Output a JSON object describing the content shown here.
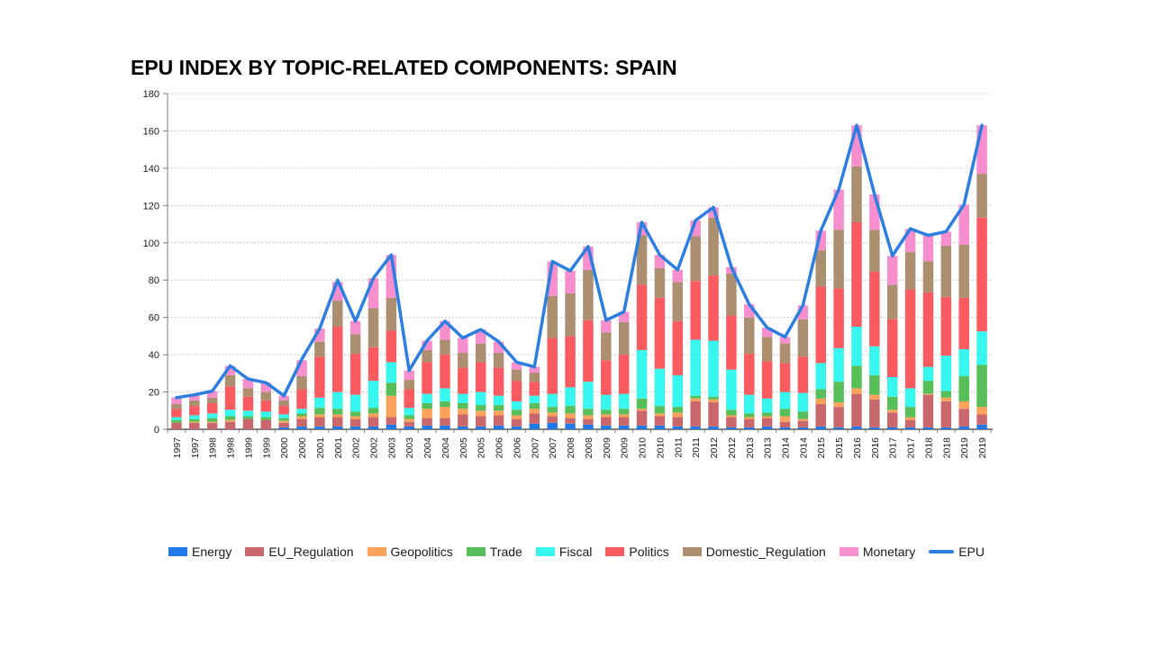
{
  "chart": {
    "title": "EPU INDEX BY TOPIC-RELATED COMPONENTS: SPAIN"
  },
  "chart_data": {
    "type": "bar",
    "stacked": true,
    "title": "EPU INDEX BY TOPIC-RELATED COMPONENTS: SPAIN",
    "xlabel": "",
    "ylabel": "",
    "ylim": [
      0,
      180
    ],
    "ytick_step": 20,
    "yticks": [
      0,
      20,
      40,
      60,
      80,
      100,
      120,
      140,
      160,
      180
    ],
    "grid": true,
    "legend_position": "bottom",
    "categories": [
      "1997",
      "1997",
      "1998",
      "1998",
      "1999",
      "1999",
      "2000",
      "2000",
      "2001",
      "2001",
      "2002",
      "2002",
      "2003",
      "2003",
      "2004",
      "2004",
      "2005",
      "2005",
      "2006",
      "2006",
      "2007",
      "2007",
      "2008",
      "2008",
      "2009",
      "2009",
      "2010",
      "2010",
      "2011",
      "2011",
      "2012",
      "2012",
      "2013",
      "2013",
      "2014",
      "2014",
      "2015",
      "2015",
      "2016",
      "2016",
      "2017",
      "2017",
      "2018",
      "2018",
      "2019",
      "2019"
    ],
    "series": [
      {
        "name": "Energy",
        "color": "#2079E8",
        "values": [
          0,
          0,
          0,
          0,
          0,
          0,
          1,
          1.5,
          1.5,
          1.5,
          1.5,
          1.5,
          2.5,
          1.5,
          2,
          2,
          1.5,
          1.5,
          2,
          1.5,
          3,
          3.5,
          3,
          2.5,
          2,
          2,
          2,
          2,
          1.5,
          1.5,
          1.5,
          1,
          1,
          1.5,
          1,
          1,
          1.5,
          1,
          1.5,
          1,
          1,
          1,
          1,
          1,
          1.5,
          2.5
        ]
      },
      {
        "name": "EU_Regulation",
        "color": "#C9676C",
        "values": [
          3.5,
          3.5,
          3.5,
          4,
          5.5,
          5,
          2.5,
          4,
          5,
          5,
          4,
          5,
          4,
          2.5,
          4,
          4,
          6.5,
          5.5,
          5.5,
          4,
          5.5,
          3.5,
          3,
          3,
          4.5,
          4.5,
          8,
          5,
          5,
          13.5,
          13,
          5.5,
          4.5,
          4.5,
          3,
          3.5,
          12,
          11,
          17.5,
          15,
          8,
          4,
          17.5,
          14,
          9.5,
          5.5
        ]
      },
      {
        "name": "Geopolitics",
        "color": "#FBA25C",
        "values": [
          0,
          0.5,
          0.5,
          1,
          0,
          0,
          1,
          1.5,
          1.5,
          1.5,
          1.5,
          2,
          11.5,
          1.5,
          5,
          6,
          3,
          3,
          2.5,
          2,
          2.5,
          2,
          2.5,
          2,
          1.5,
          1.5,
          1,
          1.5,
          2.5,
          1.5,
          1.5,
          1,
          1,
          1,
          3,
          1,
          3,
          2.5,
          3,
          2.5,
          1.5,
          1.5,
          0.5,
          2,
          4,
          4
        ]
      },
      {
        "name": "Trade",
        "color": "#57BE59",
        "values": [
          1.5,
          1.5,
          2,
          2,
          1.5,
          1.5,
          1.5,
          1.5,
          3.5,
          3,
          2.5,
          3,
          7,
          2,
          3,
          3,
          3,
          3,
          3,
          3,
          3,
          3,
          4,
          3.5,
          2.5,
          3,
          5.5,
          4,
          3,
          1.5,
          1.5,
          3,
          2,
          2,
          4,
          4,
          5,
          11,
          12,
          10.5,
          7,
          5.5,
          7,
          3.5,
          13.5,
          22.5
        ]
      },
      {
        "name": "Fiscal",
        "color": "#36F6EE",
        "values": [
          1.5,
          2,
          2.5,
          3.5,
          3,
          3,
          2,
          2.5,
          5.5,
          9,
          9,
          14.5,
          11,
          4,
          5,
          7,
          5,
          7,
          5,
          4.5,
          4,
          7,
          10,
          14.5,
          8,
          8,
          26,
          20,
          17,
          30,
          30,
          21.5,
          10,
          7.5,
          9,
          10,
          14,
          18,
          21,
          15.5,
          10.5,
          10,
          7.5,
          19,
          14.5,
          18
        ]
      },
      {
        "name": "Politics",
        "color": "#F95B60",
        "values": [
          4.5,
          5,
          5.5,
          12.5,
          7.5,
          6,
          4.5,
          10.5,
          22,
          35,
          22,
          18,
          17,
          10,
          17,
          18,
          14,
          16,
          15,
          11,
          7.5,
          30,
          27.5,
          33,
          18.5,
          21,
          35,
          38,
          29,
          31.5,
          35,
          29,
          22,
          20,
          15.5,
          19.5,
          41,
          32,
          56,
          40,
          31,
          53,
          40,
          31.5,
          27.5,
          61
        ]
      },
      {
        "name": "Domestic_Regulation",
        "color": "#AC8E70",
        "values": [
          2.5,
          3,
          3,
          6,
          4.5,
          4.5,
          3,
          7,
          8,
          14,
          10.5,
          21,
          17.5,
          5,
          6.5,
          8,
          8,
          10,
          8,
          6,
          5,
          22.5,
          23,
          27,
          15,
          17.5,
          26.5,
          16,
          21,
          24,
          31,
          22.5,
          19.5,
          13,
          10.5,
          20,
          19.5,
          31.5,
          30,
          22.5,
          18.5,
          20,
          16.5,
          27.5,
          28.5,
          23.5
        ]
      },
      {
        "name": "Monetary",
        "color": "#F78FCE",
        "values": [
          3.5,
          3,
          3.5,
          5,
          5,
          5,
          2.5,
          8.5,
          7,
          10,
          7,
          16,
          23,
          5,
          5,
          10,
          8,
          7.5,
          6,
          4,
          3,
          18.5,
          12,
          12.5,
          6.5,
          5.5,
          7,
          7,
          6.5,
          8.5,
          5.5,
          3.5,
          7,
          5,
          3.5,
          7.5,
          10.5,
          21.5,
          22,
          19,
          15.5,
          12.5,
          14,
          7.5,
          21.5,
          26
        ]
      }
    ],
    "line_series": {
      "name": "EPU",
      "color": "#2C7FE0",
      "values": [
        17,
        18.5,
        20.5,
        34,
        27,
        25,
        18,
        37.5,
        54,
        80,
        58,
        81,
        93.5,
        31.5,
        47.5,
        58,
        49,
        53.5,
        47,
        36,
        33.5,
        90,
        85,
        98,
        58.5,
        63,
        111,
        93.5,
        85.5,
        112,
        119,
        87,
        67,
        54.5,
        49.5,
        66.5,
        106.5,
        128.5,
        163,
        126,
        93,
        107.5,
        104,
        106,
        120.5,
        163
      ]
    }
  }
}
